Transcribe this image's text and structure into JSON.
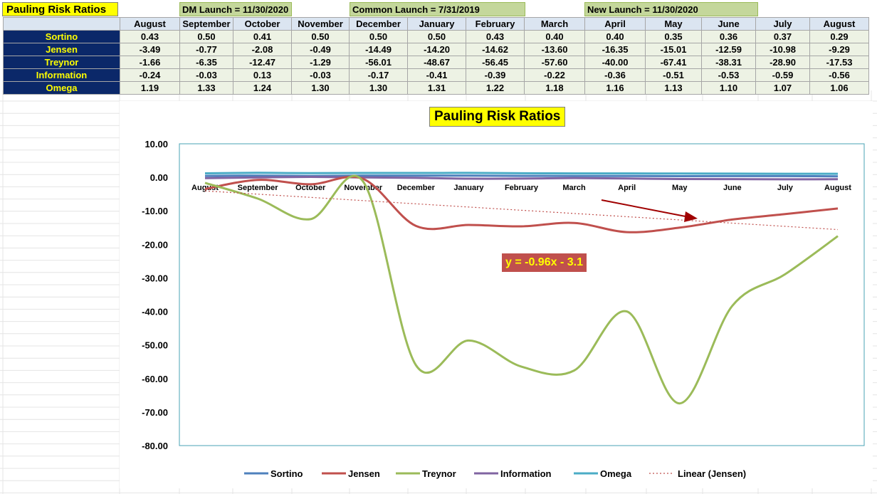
{
  "sheet": {
    "title": "Pauling Risk Ratios",
    "dm_launch": "DM Launch = 11/30/2020",
    "common_launch": "Common Launch = 7/31/2019",
    "new_launch": "New Launch = 11/30/2020",
    "months": [
      "August",
      "September",
      "October",
      "November",
      "December",
      "January",
      "February",
      "March",
      "April",
      "May",
      "June",
      "July",
      "August"
    ],
    "rows": [
      {
        "label": "Sortino",
        "values": [
          "0.43",
          "0.50",
          "0.41",
          "0.50",
          "0.50",
          "0.50",
          "0.43",
          "0.40",
          "0.40",
          "0.35",
          "0.36",
          "0.37",
          "0.29"
        ]
      },
      {
        "label": "Jensen",
        "values": [
          "-3.49",
          "-0.77",
          "-2.08",
          "-0.49",
          "-14.49",
          "-14.20",
          "-14.62",
          "-13.60",
          "-16.35",
          "-15.01",
          "-12.59",
          "-10.98",
          "-9.29"
        ]
      },
      {
        "label": "Treynor",
        "values": [
          "-1.66",
          "-6.35",
          "-12.47",
          "-1.29",
          "-56.01",
          "-48.67",
          "-56.45",
          "-57.60",
          "-40.00",
          "-67.41",
          "-38.31",
          "-28.90",
          "-17.53"
        ]
      },
      {
        "label": "Information",
        "values": [
          "-0.24",
          "-0.03",
          "0.13",
          "-0.03",
          "-0.17",
          "-0.41",
          "-0.39",
          "-0.22",
          "-0.36",
          "-0.51",
          "-0.53",
          "-0.59",
          "-0.56"
        ]
      },
      {
        "label": "Omega",
        "values": [
          "1.19",
          "1.33",
          "1.24",
          "1.30",
          "1.30",
          "1.31",
          "1.22",
          "1.18",
          "1.16",
          "1.13",
          "1.10",
          "1.07",
          "1.06"
        ]
      }
    ]
  },
  "chart_data": {
    "type": "line",
    "title": "Pauling Risk Ratios",
    "categories": [
      "August",
      "September",
      "October",
      "November",
      "December",
      "January",
      "February",
      "March",
      "April",
      "May",
      "June",
      "July",
      "August"
    ],
    "ylim": [
      -80,
      10
    ],
    "yticks": [
      "10.00",
      "0.00",
      "-10.00",
      "-20.00",
      "-30.00",
      "-40.00",
      "-50.00",
      "-60.00",
      "-70.00",
      "-80.00"
    ],
    "ytick_values": [
      10,
      0,
      -10,
      -20,
      -30,
      -40,
      -50,
      -60,
      -70,
      -80
    ],
    "grid": false,
    "legend_position": "bottom",
    "series": [
      {
        "name": "Sortino",
        "color": "#4f81bd",
        "values": [
          0.43,
          0.5,
          0.41,
          0.5,
          0.5,
          0.5,
          0.43,
          0.4,
          0.4,
          0.35,
          0.36,
          0.37,
          0.29
        ]
      },
      {
        "name": "Jensen",
        "color": "#c0504d",
        "values": [
          -3.49,
          -0.77,
          -2.08,
          -0.49,
          -14.49,
          -14.2,
          -14.62,
          -13.6,
          -16.35,
          -15.01,
          -12.59,
          -10.98,
          -9.29
        ]
      },
      {
        "name": "Treynor",
        "color": "#9bbb59",
        "values": [
          -1.66,
          -6.35,
          -12.47,
          -1.29,
          -56.01,
          -48.67,
          -56.45,
          -57.6,
          -40.0,
          -67.41,
          -38.31,
          -28.9,
          -17.53
        ]
      },
      {
        "name": "Information",
        "color": "#8064a2",
        "values": [
          -0.24,
          -0.03,
          0.13,
          -0.03,
          -0.17,
          -0.41,
          -0.39,
          -0.22,
          -0.36,
          -0.51,
          -0.53,
          -0.59,
          -0.56
        ]
      },
      {
        "name": "Omega",
        "color": "#4bacc6",
        "values": [
          1.19,
          1.33,
          1.24,
          1.3,
          1.3,
          1.31,
          1.22,
          1.18,
          1.16,
          1.13,
          1.1,
          1.07,
          1.06
        ]
      }
    ],
    "trendline": {
      "name": "Linear (Jensen)",
      "color": "#c0504d",
      "slope": -0.96,
      "intercept": -3.1
    },
    "annotations": [
      "y = -0.96x - 3.1"
    ]
  }
}
